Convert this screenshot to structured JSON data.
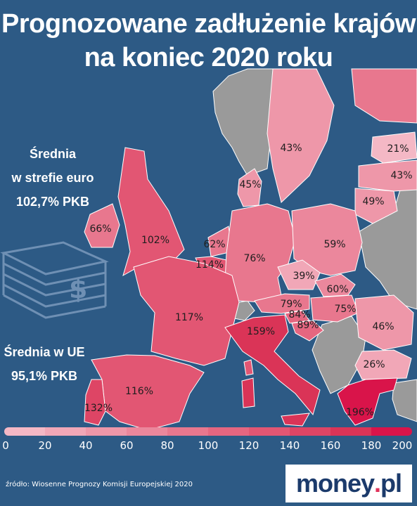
{
  "title_line1": "Prognozowane zadłużenie krajów",
  "title_line2": "na koniec 2020 roku",
  "euro_avg": {
    "line1": "Średnia",
    "line2": "w strefie euro",
    "line3": "102,7% PKB"
  },
  "eu_avg": {
    "line1": "Średnia w UE",
    "line2": "95,1% PKB"
  },
  "labels": {
    "finland": "43%",
    "estonia": "21%",
    "latvia": "43%",
    "lithuania": "49%",
    "denmark": "45%",
    "ireland": "66%",
    "uk": "102%",
    "netherlands": "62%",
    "belgium": "114%",
    "germany": "76%",
    "poland": "59%",
    "czechia": "39%",
    "slovakia": "60%",
    "austria": "79%",
    "slovenia": "84%",
    "hungary": "75%",
    "croatia": "89%",
    "romania": "46%",
    "france": "117%",
    "italy": "159%",
    "bulgaria": "26%",
    "spain": "116%",
    "portugal": "132%",
    "greece": "196%"
  },
  "scale_ticks": [
    "0",
    "20",
    "40",
    "60",
    "80",
    "100",
    "120",
    "140",
    "160",
    "180",
    "200"
  ],
  "colors": {
    "background": "#2d5a85",
    "non_data": "#9a9a9a",
    "scale": [
      "#f4b8c5",
      "#f1a7b7",
      "#ee97a9",
      "#eb879c",
      "#e8778e",
      "#e56680",
      "#e25673",
      "#de4565",
      "#da3457",
      "#d9144a"
    ]
  },
  "source": "źródło: Wiosenne Prognozy Komisji Europejskiej 2020",
  "logo": {
    "main": "money",
    "dot": ".",
    "suffix": "pl"
  }
}
